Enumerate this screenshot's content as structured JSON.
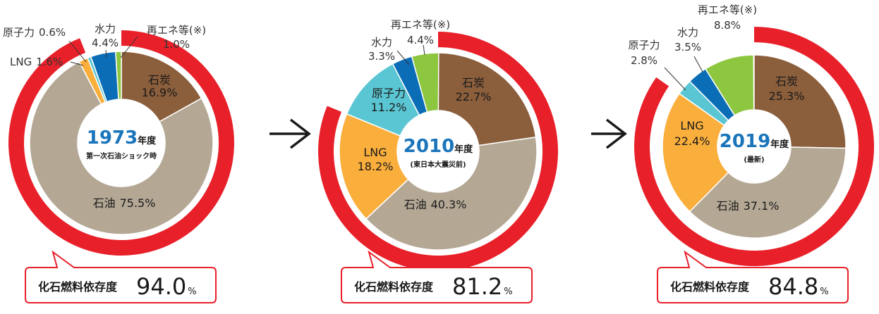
{
  "colors": {
    "coal": "#8B5E3C",
    "oil": "#B4A895",
    "lng": "#FAAE3C",
    "nuclear": "#5BC6D3",
    "hydro": "#0B6DB6",
    "renewables": "#8DC63F",
    "fossil_ring": "#E8202A",
    "year_text": "#1B75BB",
    "text": "#333333"
  },
  "arrow_icon": "right-arrow-icon",
  "chart_data": [
    {
      "type": "pie",
      "year": "1973",
      "year_suffix": "年度",
      "subtitle": "第一次石油ショック時",
      "slices": [
        {
          "key": "coal",
          "label": "石炭",
          "value": 16.9,
          "value_text": "16.9%"
        },
        {
          "key": "oil",
          "label": "石油",
          "value": 75.5,
          "value_text": "75.5%"
        },
        {
          "key": "lng",
          "label": "LNG",
          "value": 1.6,
          "value_text": "1.6%"
        },
        {
          "key": "nuclear",
          "label": "原子力",
          "value": 0.6,
          "value_text": "0.6%"
        },
        {
          "key": "hydro",
          "label": "水力",
          "value": 4.4,
          "value_text": "4.4%"
        },
        {
          "key": "renewables",
          "label": "再エネ等(※)",
          "value": 1.0,
          "value_text": "1.0%"
        }
      ],
      "fossil_label": "化石燃料依存度",
      "fossil_value": 94.0,
      "fossil_value_text": "94.0",
      "fossil_unit": "%"
    },
    {
      "type": "pie",
      "year": "2010",
      "year_suffix": "年度",
      "subtitle": "(東日本大震災前)",
      "slices": [
        {
          "key": "coal",
          "label": "石炭",
          "value": 22.7,
          "value_text": "22.7%"
        },
        {
          "key": "oil",
          "label": "石油",
          "value": 40.3,
          "value_text": "40.3%"
        },
        {
          "key": "lng",
          "label": "LNG",
          "value": 18.2,
          "value_text": "18.2%"
        },
        {
          "key": "nuclear",
          "label": "原子力",
          "value": 11.2,
          "value_text": "11.2%"
        },
        {
          "key": "hydro",
          "label": "水力",
          "value": 3.3,
          "value_text": "3.3%"
        },
        {
          "key": "renewables",
          "label": "再エネ等(※)",
          "value": 4.4,
          "value_text": "4.4%"
        }
      ],
      "fossil_label": "化石燃料依存度",
      "fossil_value": 81.2,
      "fossil_value_text": "81.2",
      "fossil_unit": "%"
    },
    {
      "type": "pie",
      "year": "2019",
      "year_suffix": "年度",
      "subtitle": "(最新)",
      "slices": [
        {
          "key": "coal",
          "label": "石炭",
          "value": 25.3,
          "value_text": "25.3%"
        },
        {
          "key": "oil",
          "label": "石油",
          "value": 37.1,
          "value_text": "37.1%"
        },
        {
          "key": "lng",
          "label": "LNG",
          "value": 22.4,
          "value_text": "22.4%"
        },
        {
          "key": "nuclear",
          "label": "原子力",
          "value": 2.8,
          "value_text": "2.8%"
        },
        {
          "key": "hydro",
          "label": "水力",
          "value": 3.5,
          "value_text": "3.5%"
        },
        {
          "key": "renewables",
          "label": "再エネ等(※)",
          "value": 8.8,
          "value_text": "8.8%"
        }
      ],
      "fossil_label": "化石燃料依存度",
      "fossil_value": 84.8,
      "fossil_value_text": "84.8",
      "fossil_unit": "%"
    }
  ]
}
